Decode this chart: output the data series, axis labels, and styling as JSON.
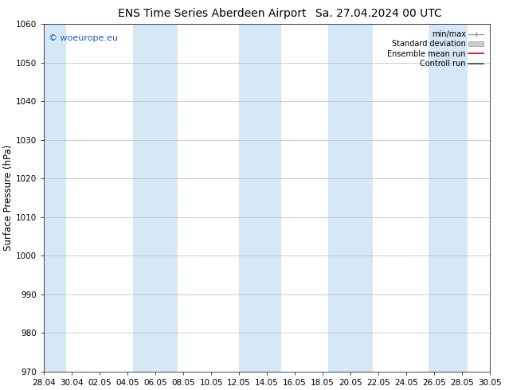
{
  "title_left": "ENS Time Series Aberdeen Airport",
  "title_right": "Sa. 27.04.2024 00 UTC",
  "ylabel": "Surface Pressure (hPa)",
  "ylim": [
    970,
    1060
  ],
  "yticks": [
    970,
    980,
    990,
    1000,
    1010,
    1020,
    1030,
    1040,
    1050,
    1060
  ],
  "xtick_labels": [
    "28.04",
    "30.04",
    "02.05",
    "04.05",
    "06.05",
    "08.05",
    "10.05",
    "12.05",
    "14.05",
    "16.05",
    "18.05",
    "20.05",
    "22.05",
    "24.05",
    "26.05",
    "28.05",
    "30.05"
  ],
  "shaded_band_color": "#d6e8f5",
  "watermark_text": "© woeurope.eu",
  "watermark_color": "#1e5bc6",
  "legend_items": [
    {
      "label": "min/max",
      "color": "#aaaaaa"
    },
    {
      "label": "Standard deviation",
      "color": "#cccccc"
    },
    {
      "label": "Ensemble mean run",
      "color": "#cc0000"
    },
    {
      "label": "Controll run",
      "color": "#007700"
    }
  ],
  "bg_color": "#ffffff",
  "grid_color": "#bbbbbb",
  "title_fontsize": 10,
  "tick_fontsize": 7.5,
  "ylabel_fontsize": 8.5,
  "legend_fontsize": 7,
  "watermark_fontsize": 8
}
